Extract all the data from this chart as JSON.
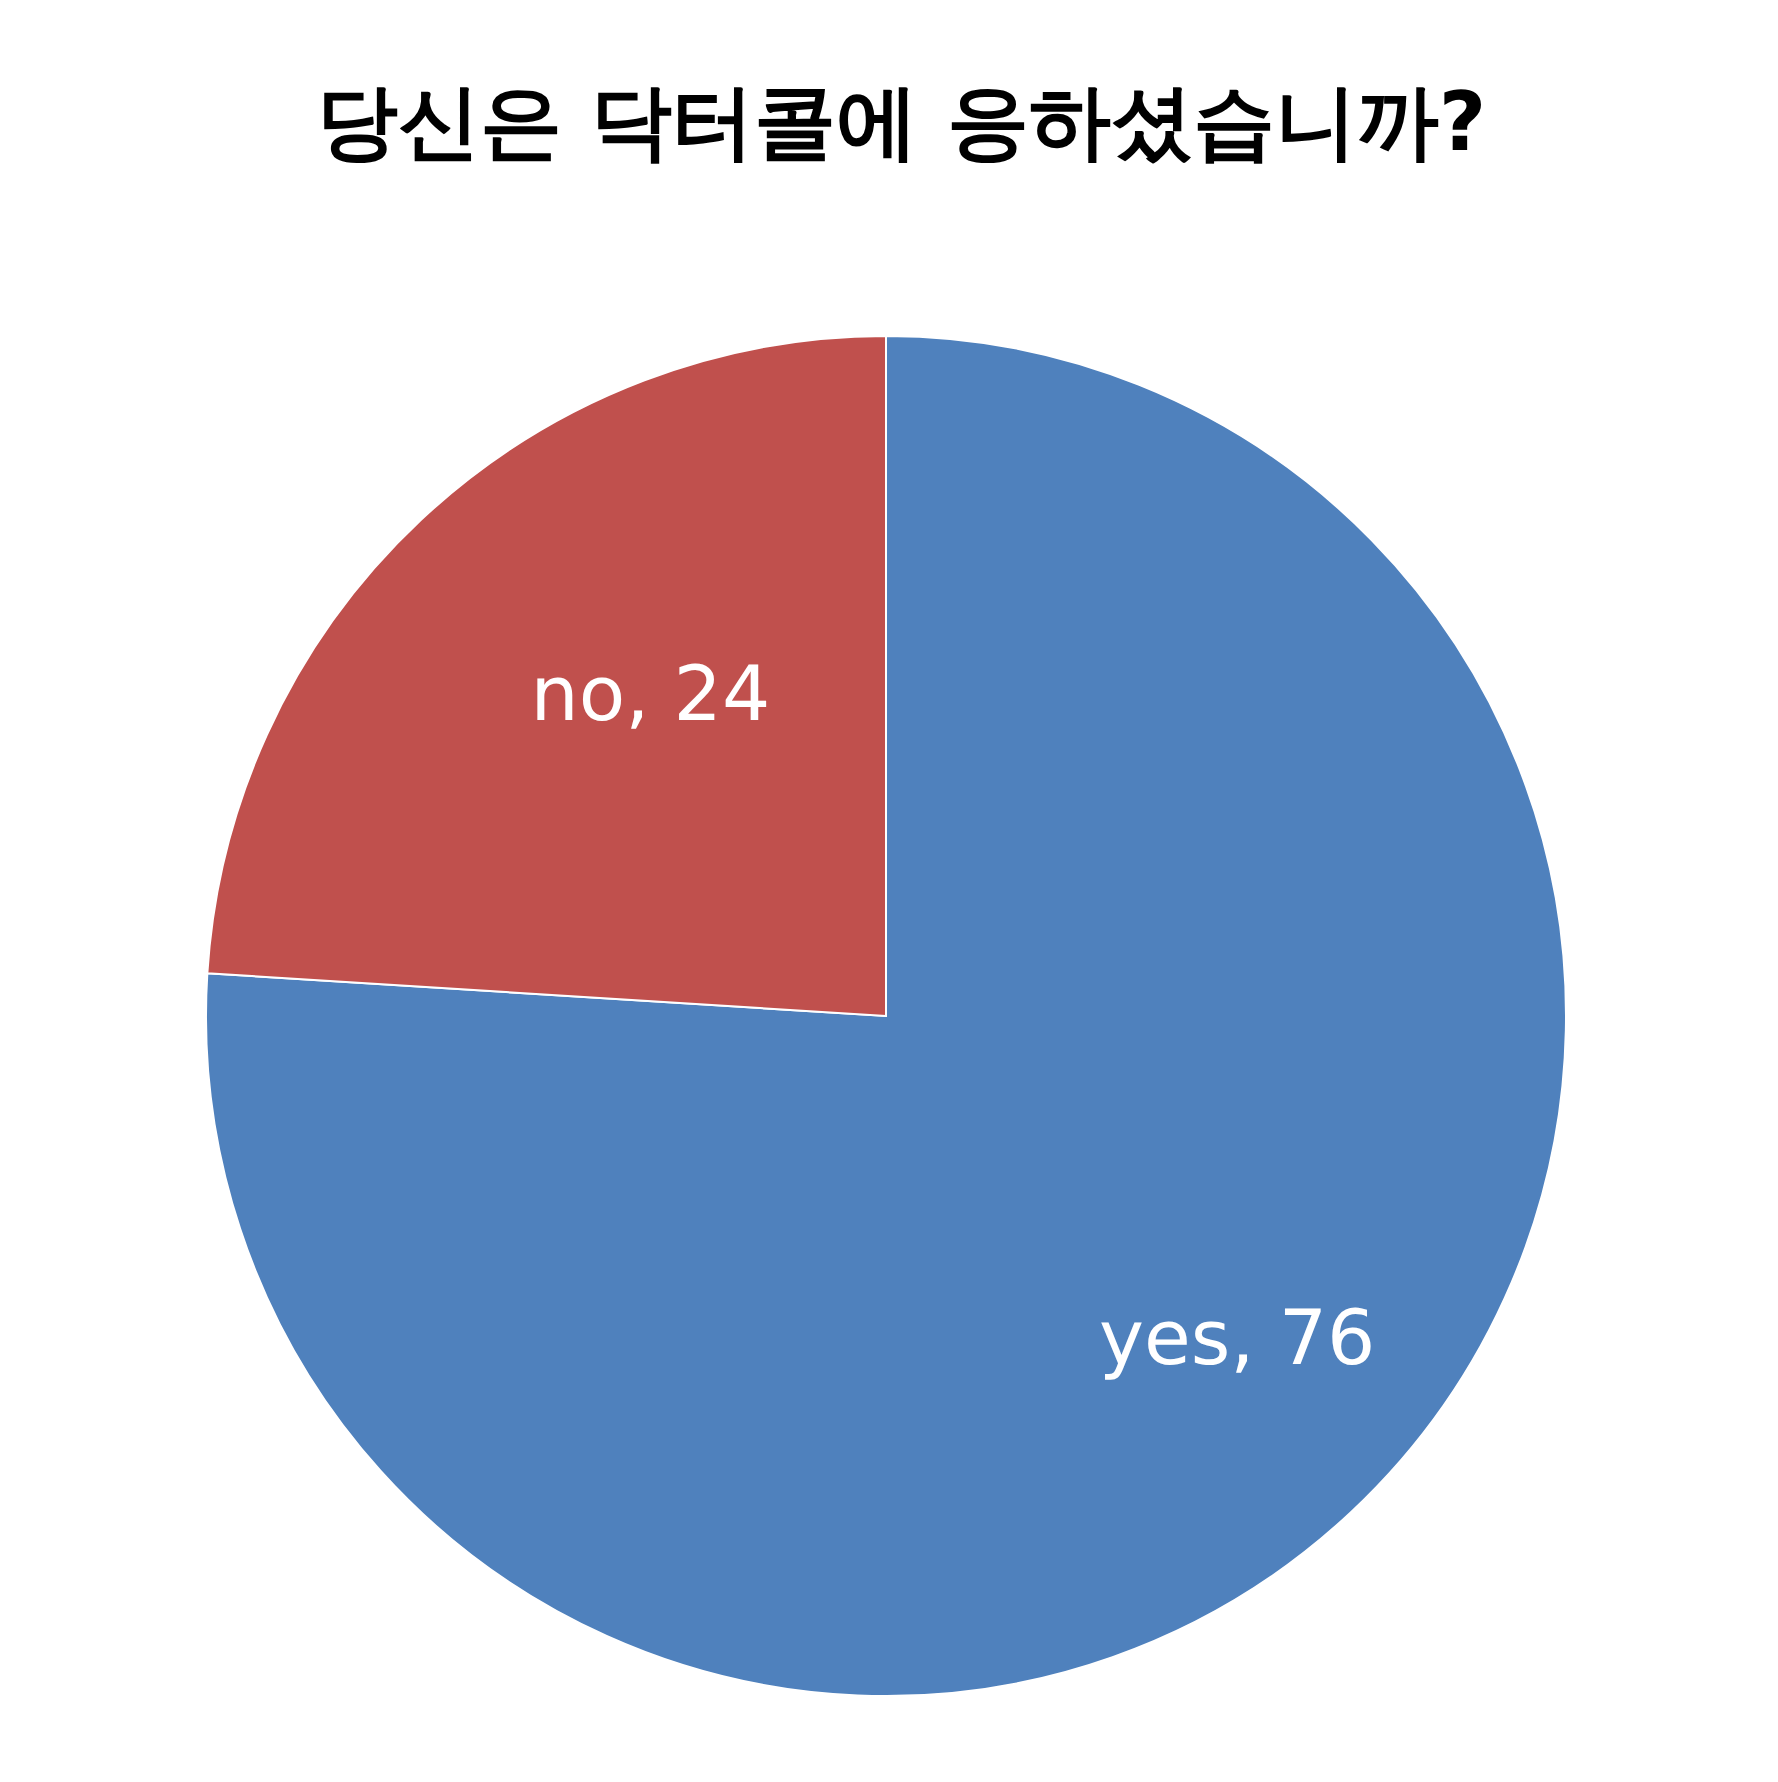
{
  "chart_data": {
    "type": "pie",
    "title": "당신은 닥터콜에 응하셨습니까?",
    "categories": [
      "yes",
      "no"
    ],
    "values": [
      76,
      24
    ],
    "colors": [
      "#4f81bd",
      "#c0504d"
    ],
    "value_labels": [
      ", 76",
      ", 24"
    ]
  }
}
